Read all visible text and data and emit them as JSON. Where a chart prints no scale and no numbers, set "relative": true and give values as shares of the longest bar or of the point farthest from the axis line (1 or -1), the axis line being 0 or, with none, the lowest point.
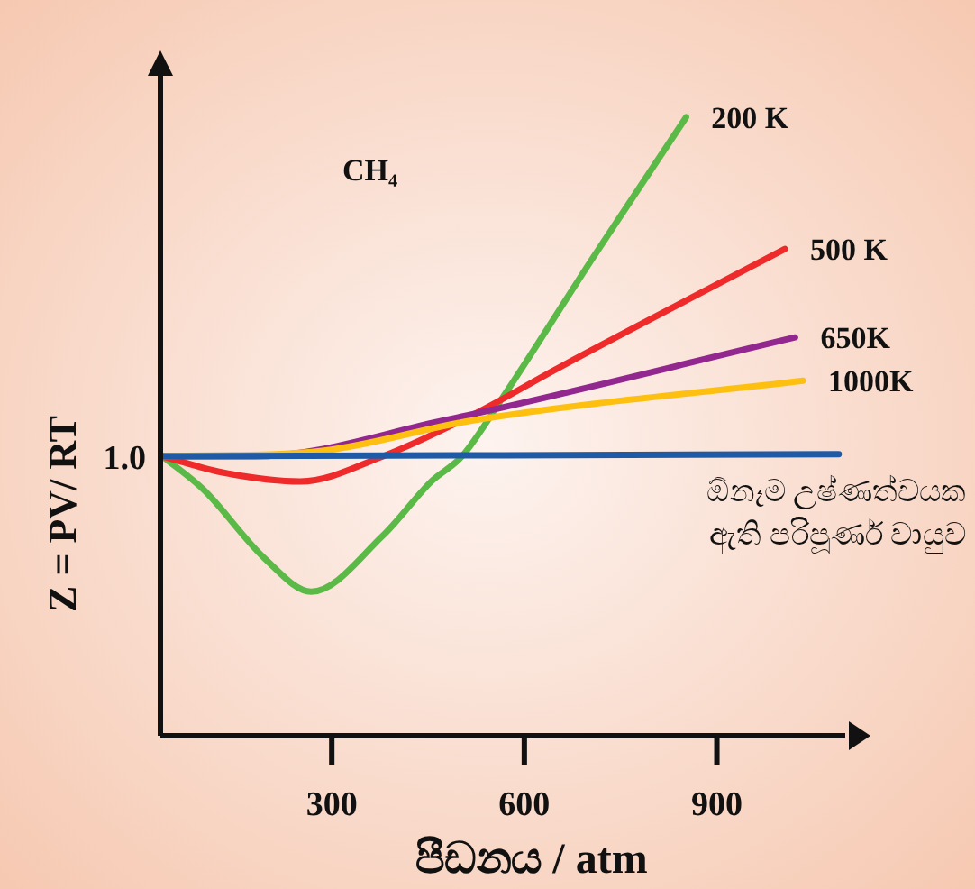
{
  "chart_data": {
    "type": "line",
    "title": "CH₄",
    "xlabel": "පීඩනය / atm",
    "ylabel": "Z = PV/ RT",
    "relative": true,
    "xlim": [
      33,
      1100
    ],
    "xticks": [
      300,
      600,
      900
    ],
    "annotations": [
      {
        "text": "1.0",
        "x": 33,
        "y": 0.452
      }
    ],
    "series": [
      {
        "name": "200 K",
        "color": "#5bb947",
        "x": [
          36,
          101,
          196,
          268,
          380,
          455,
          503,
          567,
          707,
          852
        ],
        "values": [
          0.452,
          0.397,
          0.286,
          0.233,
          0.324,
          0.411,
          0.452,
          0.548,
          0.773,
          1.0
        ]
      },
      {
        "name": "500 K",
        "color": "#ee2a2a",
        "x": [
          36,
          128,
          251,
          380,
          520,
          659,
          1006
        ],
        "values": [
          0.452,
          0.426,
          0.411,
          0.452,
          0.519,
          0.598,
          0.787
        ]
      },
      {
        "name": "650K",
        "color": "#92278f",
        "x": [
          36,
          180,
          475,
          1022
        ],
        "values": [
          0.452,
          0.452,
          0.51,
          0.644
        ]
      },
      {
        "name": "1000K",
        "color": "#fdc010",
        "x": [
          36,
          288,
          520,
          1034
        ],
        "values": [
          0.452,
          0.461,
          0.51,
          0.574
        ]
      },
      {
        "name": "ඕනෑම උෂ්ණත්වයක ඇති පරිපූර්ණ වායුව",
        "color": "#1f5aa6",
        "x": [
          36,
          1090
        ],
        "values": [
          0.452,
          0.455
        ]
      }
    ]
  }
}
